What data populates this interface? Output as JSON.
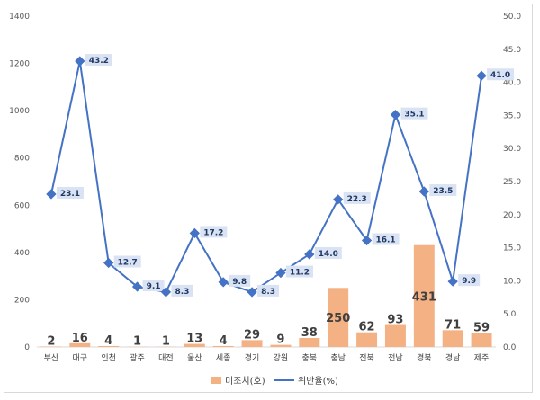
{
  "chart_data": {
    "type": "bar+line",
    "categories": [
      "부산",
      "대구",
      "인천",
      "광주",
      "대전",
      "울산",
      "세종",
      "경기",
      "강원",
      "충북",
      "충남",
      "전북",
      "전남",
      "경북",
      "경남",
      "제주"
    ],
    "series": [
      {
        "name": "미조치(호)",
        "type": "bar",
        "axis": "left",
        "color": "#f4b183",
        "values": [
          2,
          16,
          4,
          1,
          1,
          13,
          4,
          29,
          9,
          38,
          250,
          62,
          93,
          431,
          71,
          59
        ]
      },
      {
        "name": "위반율(%)",
        "type": "line",
        "axis": "right",
        "color": "#4472c4",
        "values": [
          23.1,
          43.2,
          12.7,
          9.1,
          8.3,
          17.2,
          9.8,
          8.3,
          11.2,
          14.0,
          22.3,
          16.1,
          35.1,
          23.5,
          9.9,
          41.0
        ]
      }
    ],
    "left_axis": {
      "ticks": [
        "0",
        "200",
        "400",
        "600",
        "800",
        "1000",
        "1200",
        "1400"
      ],
      "ylim": [
        0,
        1400
      ]
    },
    "right_axis": {
      "ticks": [
        "0.0",
        "5.0",
        "10.0",
        "15.0",
        "20.0",
        "25.0",
        "30.0",
        "35.0",
        "40.0",
        "45.0",
        "50.0"
      ],
      "ylim": [
        0,
        50
      ]
    },
    "line_labels": [
      "23.1",
      "43.2",
      "12.7",
      "9.1",
      "8.3",
      "17.2",
      "9.8",
      "8.3",
      "11.2",
      "14.0",
      "22.3",
      "16.1",
      "35.1",
      "23.5",
      "9.9",
      "41.0"
    ],
    "legend_position": "bottom",
    "grid": false
  }
}
